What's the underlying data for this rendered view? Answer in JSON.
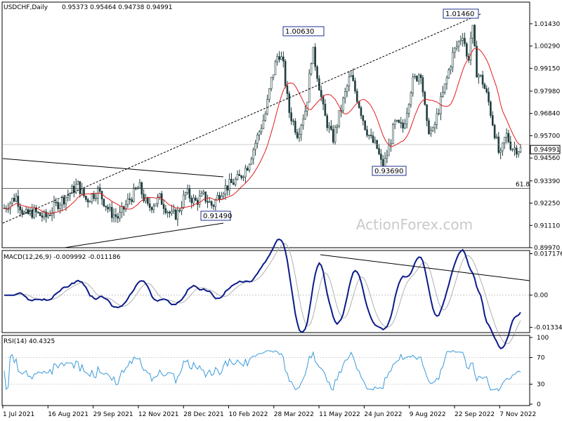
{
  "header": {
    "symbol": "USDCHF,Daily",
    "ohlc": "0.95373 0.95464 0.94738 0.94991"
  },
  "watermark": "ActionForex.com",
  "colors": {
    "candle": "#1f3d3d",
    "ma": "#e21d1d",
    "macd_main": "#0b1b8a",
    "macd_signal": "#b0b0b0",
    "rsi": "#3a9ad9",
    "trendline": "#000000",
    "label_border": "#1f2f8f"
  },
  "chart_data": [
    {
      "type": "candlestick",
      "name": "price",
      "y_ticks": [
        "1.01430",
        "1.00290",
        "0.99150",
        "0.97980",
        "0.96840",
        "0.95700",
        "0.94560",
        "0.93390",
        "0.92250",
        "0.91110",
        "0.89970"
      ],
      "ylim": [
        0.8997,
        1.02
      ],
      "current_price": "0.94991",
      "annotations": [
        {
          "text": "1.00630",
          "value": 1.0063
        },
        {
          "text": "1.01460",
          "value": 1.0146
        },
        {
          "text": "0.93690",
          "value": 0.9369
        },
        {
          "text": "0.91490",
          "value": 0.9149
        }
      ],
      "fib_label": "61.8",
      "fib_level": 0.93,
      "overlay": "moving average",
      "grid": false
    },
    {
      "type": "line",
      "name": "macd",
      "label": "MACD(12,26,9) -0.009992 -0.011186",
      "y_ticks": [
        "0.017176",
        "0.00",
        "-0.01334"
      ],
      "ylim": [
        -0.0155,
        0.0185
      ]
    },
    {
      "type": "line",
      "name": "rsi",
      "label": "RSI(14) 40.4325",
      "y_ticks": [
        "100",
        "70",
        "30",
        "0"
      ],
      "ylim": [
        0,
        100
      ],
      "levels": [
        70,
        30
      ]
    }
  ],
  "x_axis": {
    "ticks": [
      "1 Jul 2021",
      "16 Aug 2021",
      "29 Sep 2021",
      "12 Nov 2021",
      "28 Dec 2021",
      "10 Feb 2022",
      "28 Mar 2022",
      "11 May 2022",
      "24 Jun 2022",
      "9 Aug 2022",
      "22 Sep 2022",
      "7 Nov 2022"
    ]
  }
}
